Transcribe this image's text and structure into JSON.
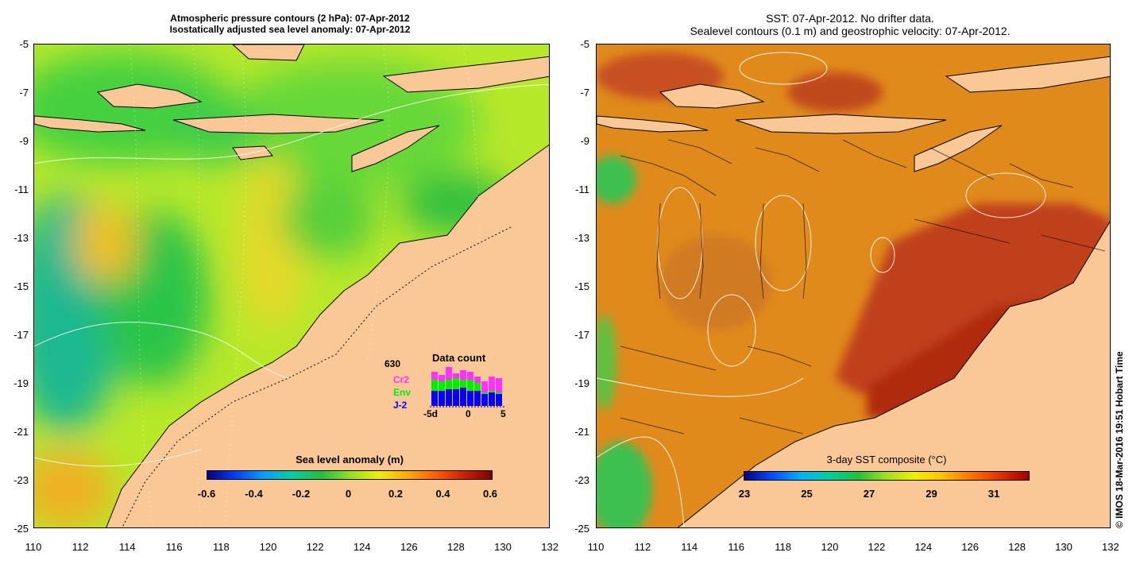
{
  "left_panel": {
    "title_line1": "Atmospheric pressure contours (2 hPa): 07-Apr-2012",
    "title_line2": "Isostatically adjusted sea level anomaly: 07-Apr-2012",
    "colorbar": {
      "title": "Sea level anomaly (m)",
      "ticks": [
        "-0.6",
        "-0.4",
        "-0.2",
        "0",
        "0.2",
        "0.4",
        "0.6"
      ]
    },
    "data_count": {
      "title": "Data count",
      "total": "630",
      "series": [
        "Cr2",
        "Env",
        "J-2"
      ],
      "series_colors": [
        "#ff33ff",
        "#00ee00",
        "#0000ff"
      ],
      "axis_labels": [
        "-5d",
        "0",
        "5"
      ]
    }
  },
  "right_panel": {
    "title_line1": "SST: 07-Apr-2012. No drifter data.",
    "title_line2": "Sealevel contours (0.1 m) and geostrophic velocity: 07-Apr-2012.",
    "colorbar": {
      "title": "3-day SST composite (°C)",
      "ticks": [
        "23",
        "25",
        "27",
        "29",
        "31"
      ]
    }
  },
  "y_axis_labels": [
    "-5",
    "-7",
    "-9",
    "-11",
    "-13",
    "-15",
    "-17",
    "-19",
    "-21",
    "-23",
    "-25"
  ],
  "x_axis_labels_left": [
    "110",
    "112",
    "114",
    "116",
    "118",
    "120",
    "122",
    "124",
    "126",
    "128",
    "130",
    "132"
  ],
  "x_axis_labels_right": [
    "110",
    "112",
    "114",
    "116",
    "118",
    "120",
    "122",
    "124",
    "126",
    "128",
    "130",
    "132"
  ],
  "credit": "© IMOS 18-Mar-2016 19:51 Hobart Time",
  "colors": {
    "land": "#fac896",
    "sla_background": "#b8e82a",
    "sst_background": "#e08a1c"
  }
}
